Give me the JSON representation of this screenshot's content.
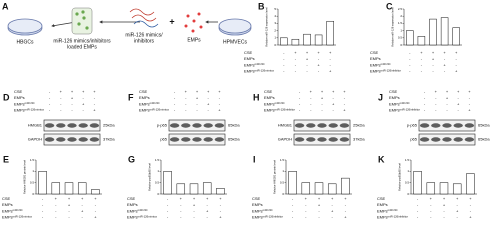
{
  "schematic": {
    "label": "A",
    "hbgcs": "HBGCs",
    "loaded": [
      "miR-126 mimics/inhibitors",
      "loaded EMPs"
    ],
    "mimics": [
      "miR-126 mimics/",
      "inhibitors"
    ],
    "plus": "+",
    "emps": "EMPs",
    "hpmvecs": "HPMVECs"
  },
  "chart_data": [
    {
      "type": "bar",
      "panel": "B",
      "ylabel": "Relative miR-126 expression level",
      "values": [
        1.0,
        0.8,
        1.5,
        1.4,
        3.3
      ],
      "ylim": [
        0,
        5
      ],
      "yticks": [
        0,
        1,
        2,
        3,
        4,
        5
      ],
      "color": "#ffffff",
      "conditions": [
        {
          "label": "CSE",
          "signs": [
            "-",
            "+",
            "+",
            "+",
            "+"
          ]
        },
        {
          "label": "EMPs",
          "signs": [
            "-",
            "-",
            "+",
            "-",
            "-"
          ]
        },
        {
          "label": "EMPs",
          "sup": "miR-NC",
          "signs": [
            "-",
            "-",
            "-",
            "+",
            "-"
          ]
        },
        {
          "label": "EMPs",
          "sup": "miR-126mimics",
          "signs": [
            "-",
            "-",
            "-",
            "-",
            "+"
          ]
        }
      ]
    },
    {
      "type": "bar",
      "panel": "C",
      "ylabel": "Relative miR-126 expression level",
      "values": [
        1.0,
        0.6,
        1.8,
        1.9,
        1.2
      ],
      "ylim": [
        0,
        2.5
      ],
      "yticks": [
        0,
        0.5,
        1,
        1.5,
        2,
        2.5
      ],
      "color": "#ffffff",
      "conditions": [
        {
          "label": "CSE",
          "signs": [
            "-",
            "+",
            "+",
            "+",
            "+"
          ]
        },
        {
          "label": "EMPs",
          "signs": [
            "-",
            "-",
            "+",
            "-",
            "-"
          ]
        },
        {
          "label": "EMPs",
          "sup": "miR-NC",
          "signs": [
            "-",
            "-",
            "-",
            "+",
            "-"
          ]
        },
        {
          "label": "EMPs",
          "sup": "miR-126inhibitor",
          "signs": [
            "-",
            "-",
            "-",
            "-",
            "+"
          ]
        }
      ]
    },
    {
      "type": "bar",
      "panel": "E",
      "ylabel": "Relative HMGB1 protein level",
      "values": [
        1.0,
        0.5,
        0.5,
        0.5,
        0.2
      ],
      "ylim": [
        0,
        1.5
      ],
      "yticks": [
        0,
        0.5,
        1,
        1.5
      ],
      "color": "#ffffff",
      "conditions": [
        {
          "label": "CSE",
          "signs": [
            "-",
            "+",
            "+",
            "+",
            "+"
          ]
        },
        {
          "label": "EMPs",
          "signs": [
            "-",
            "-",
            "+",
            "-",
            "-"
          ]
        },
        {
          "label": "EMPs",
          "sup": "miR-NC",
          "signs": [
            "-",
            "-",
            "-",
            "+",
            "-"
          ]
        },
        {
          "label": "EMPs",
          "sup": "miR-126mimics",
          "signs": [
            "-",
            "-",
            "-",
            "-",
            "+"
          ]
        }
      ]
    },
    {
      "type": "bar",
      "panel": "G",
      "ylabel": "Relative p-p65/p65 level",
      "values": [
        1.0,
        0.45,
        0.45,
        0.5,
        0.25
      ],
      "ylim": [
        0,
        1.5
      ],
      "yticks": [
        0,
        0.5,
        1,
        1.5
      ],
      "color": "#ffffff",
      "conditions": [
        {
          "label": "CSE",
          "signs": [
            "-",
            "+",
            "+",
            "+",
            "+"
          ]
        },
        {
          "label": "EMPs",
          "signs": [
            "-",
            "-",
            "+",
            "-",
            "-"
          ]
        },
        {
          "label": "EMPs",
          "sup": "miR-NC",
          "signs": [
            "-",
            "-",
            "-",
            "+",
            "-"
          ]
        },
        {
          "label": "EMPs",
          "sup": "miR-126mimics",
          "signs": [
            "-",
            "-",
            "-",
            "-",
            "+"
          ]
        }
      ]
    },
    {
      "type": "bar",
      "panel": "I",
      "ylabel": "Relative HMGB1 protein level",
      "values": [
        1.0,
        0.5,
        0.5,
        0.45,
        0.7
      ],
      "ylim": [
        0,
        1.5
      ],
      "yticks": [
        0,
        0.5,
        1,
        1.5
      ],
      "color": "#ffffff",
      "conditions": [
        {
          "label": "CSE",
          "signs": [
            "-",
            "+",
            "+",
            "+",
            "+"
          ]
        },
        {
          "label": "EMPs",
          "signs": [
            "-",
            "-",
            "+",
            "-",
            "-"
          ]
        },
        {
          "label": "EMPs",
          "sup": "miR-NC",
          "signs": [
            "-",
            "-",
            "-",
            "+",
            "-"
          ]
        },
        {
          "label": "EMPs",
          "sup": "miR-126inhibitor",
          "signs": [
            "-",
            "-",
            "-",
            "-",
            "+"
          ]
        }
      ]
    },
    {
      "type": "bar",
      "panel": "K",
      "ylabel": "Relative p-p65/p65 level",
      "values": [
        1.0,
        0.5,
        0.5,
        0.45,
        0.9
      ],
      "ylim": [
        0,
        1.5
      ],
      "yticks": [
        0,
        0.5,
        1,
        1.5
      ],
      "color": "#ffffff",
      "conditions": [
        {
          "label": "CSE",
          "signs": [
            "-",
            "+",
            "+",
            "+",
            "+"
          ]
        },
        {
          "label": "EMPs",
          "signs": [
            "-",
            "-",
            "+",
            "-",
            "-"
          ]
        },
        {
          "label": "EMPs",
          "sup": "miR-NC",
          "signs": [
            "-",
            "-",
            "-",
            "+",
            "-"
          ]
        },
        {
          "label": "EMPs",
          "sup": "miR-126inhibitor",
          "signs": [
            "-",
            "-",
            "-",
            "-",
            "+"
          ]
        }
      ]
    }
  ],
  "blots": [
    {
      "panel": "D",
      "bands": [
        {
          "name": "HMGB1",
          "size": "25kDa"
        },
        {
          "name": "GAPDH",
          "size": "37kDa"
        }
      ],
      "conditions": [
        {
          "label": "CSE",
          "signs": [
            "-",
            "+",
            "+",
            "+",
            "+"
          ]
        },
        {
          "label": "EMPs",
          "signs": [
            "-",
            "-",
            "+",
            "-",
            "-"
          ]
        },
        {
          "label": "EMPs",
          "sup": "miR-NC",
          "signs": [
            "-",
            "-",
            "-",
            "+",
            "-"
          ]
        },
        {
          "label": "EMPs",
          "sup": "miR-126mimics",
          "signs": [
            "-",
            "-",
            "-",
            "-",
            "+"
          ]
        }
      ]
    },
    {
      "panel": "F",
      "bands": [
        {
          "name": "p-p65",
          "size": "65kDa"
        },
        {
          "name": "p65",
          "size": "65kDa"
        }
      ],
      "conditions": [
        {
          "label": "CSE",
          "signs": [
            "-",
            "+",
            "+",
            "+",
            "+"
          ]
        },
        {
          "label": "EMPs",
          "signs": [
            "-",
            "-",
            "+",
            "-",
            "-"
          ]
        },
        {
          "label": "EMPs",
          "sup": "miR-NC",
          "signs": [
            "-",
            "-",
            "-",
            "+",
            "-"
          ]
        },
        {
          "label": "EMPs",
          "sup": "miR-126mimics",
          "signs": [
            "-",
            "-",
            "-",
            "-",
            "+"
          ]
        }
      ]
    },
    {
      "panel": "H",
      "bands": [
        {
          "name": "HMGB1",
          "size": "25kDa"
        },
        {
          "name": "GAPDH",
          "size": "37kDa"
        }
      ],
      "conditions": [
        {
          "label": "CSE",
          "signs": [
            "-",
            "+",
            "+",
            "+",
            "+"
          ]
        },
        {
          "label": "EMPs",
          "signs": [
            "-",
            "-",
            "+",
            "-",
            "-"
          ]
        },
        {
          "label": "EMPs",
          "sup": "miR-NC",
          "signs": [
            "-",
            "-",
            "-",
            "+",
            "-"
          ]
        },
        {
          "label": "EMPs",
          "sup": "miR-126inhibitor",
          "signs": [
            "-",
            "-",
            "-",
            "-",
            "+"
          ]
        }
      ]
    },
    {
      "panel": "J",
      "bands": [
        {
          "name": "p-p65",
          "size": "65kDa"
        },
        {
          "name": "p65",
          "size": "65kDa"
        }
      ],
      "conditions": [
        {
          "label": "CSE",
          "signs": [
            "-",
            "+",
            "+",
            "+",
            "+"
          ]
        },
        {
          "label": "EMPs",
          "signs": [
            "-",
            "-",
            "+",
            "-",
            "-"
          ]
        },
        {
          "label": "EMPs",
          "sup": "miR-NC",
          "signs": [
            "-",
            "-",
            "-",
            "+",
            "-"
          ]
        },
        {
          "label": "EMPs",
          "sup": "miR-126inhibitor",
          "signs": [
            "-",
            "-",
            "-",
            "-",
            "+"
          ]
        }
      ]
    }
  ]
}
